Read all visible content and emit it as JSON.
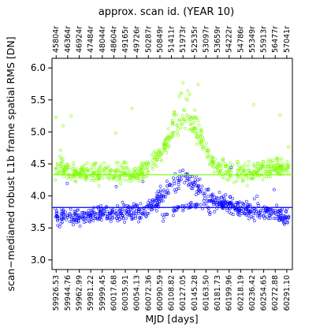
{
  "chart_data": {
    "type": "scatter",
    "title": "approx. scan id. (YEAR 10)",
    "xlabel": "MJD [days]",
    "ylabel": "scan−medianed robust L1b frame spatial RMS [DN]",
    "xlim": [
      59920,
      60300
    ],
    "ylim": [
      2.85,
      6.15
    ],
    "x_ticks": [
      "59926.53",
      "59944.76",
      "59962.99",
      "59981.22",
      "59999.45",
      "60017.68",
      "60035.91",
      "60054.13",
      "60072.36",
      "60090.59",
      "60108.82",
      "60127.05",
      "60145.28",
      "60163.50",
      "60181.73",
      "60199.96",
      "60218.19",
      "60236.42",
      "60254.65",
      "60272.88",
      "60291.10"
    ],
    "y_ticks": [
      "3.0",
      "3.5",
      "4.0",
      "4.5",
      "5.0",
      "5.5",
      "6.0"
    ],
    "top_ticks": [
      "45804r",
      "46364r",
      "46924r",
      "47484r",
      "48044r",
      "48604r",
      "49165r",
      "49726r",
      "50287r",
      "50849r",
      "51411r",
      "51973r",
      "52535r",
      "53097r",
      "53659r",
      "54222r",
      "54786r",
      "55349r",
      "55913r",
      "56477r",
      "57041r"
    ],
    "series": [
      {
        "color": "#7cfc00",
        "median": 4.33,
        "trend": [
          [
            59926,
            4.45
          ],
          [
            59944,
            4.42
          ],
          [
            59962,
            4.35
          ],
          [
            59981,
            4.36
          ],
          [
            59999,
            4.37
          ],
          [
            60017,
            4.35
          ],
          [
            60035,
            4.34
          ],
          [
            60054,
            4.36
          ],
          [
            60072,
            4.46
          ],
          [
            60090,
            4.62
          ],
          [
            60108,
            4.92
          ],
          [
            60127,
            5.2
          ],
          [
            60145,
            5.05
          ],
          [
            60163,
            4.72
          ],
          [
            60181,
            4.45
          ],
          [
            60199,
            4.38
          ],
          [
            60218,
            4.36
          ],
          [
            60236,
            4.35
          ],
          [
            60254,
            4.4
          ],
          [
            60272,
            4.45
          ],
          [
            60291,
            4.42
          ]
        ],
        "spread": 0.17,
        "upper_band": [
          [
            60085,
            4.5
          ],
          [
            60100,
            4.85
          ],
          [
            60118,
            5.4
          ],
          [
            60127,
            5.7
          ],
          [
            60140,
            5.45
          ],
          [
            60155,
            5.0
          ],
          [
            60170,
            4.6
          ]
        ]
      },
      {
        "color": "#0000ff",
        "median": 3.82,
        "trend": [
          [
            59926,
            3.68
          ],
          [
            59944,
            3.68
          ],
          [
            59962,
            3.66
          ],
          [
            59981,
            3.72
          ],
          [
            59999,
            3.74
          ],
          [
            60017,
            3.72
          ],
          [
            60035,
            3.73
          ],
          [
            60054,
            3.74
          ],
          [
            60072,
            3.8
          ],
          [
            60090,
            3.95
          ],
          [
            60108,
            4.15
          ],
          [
            60127,
            4.3
          ],
          [
            60145,
            4.2
          ],
          [
            60163,
            4.02
          ],
          [
            60181,
            3.9
          ],
          [
            60199,
            3.86
          ],
          [
            60218,
            3.82
          ],
          [
            60236,
            3.78
          ],
          [
            60254,
            3.76
          ],
          [
            60272,
            3.74
          ],
          [
            60291,
            3.68
          ]
        ],
        "spread": 0.14,
        "lower_band": [
          [
            60090,
            3.6
          ],
          [
            60105,
            3.75
          ],
          [
            60127,
            3.85
          ],
          [
            60150,
            3.85
          ],
          [
            60170,
            3.75
          ]
        ]
      }
    ],
    "grid": false,
    "legend": "none"
  }
}
